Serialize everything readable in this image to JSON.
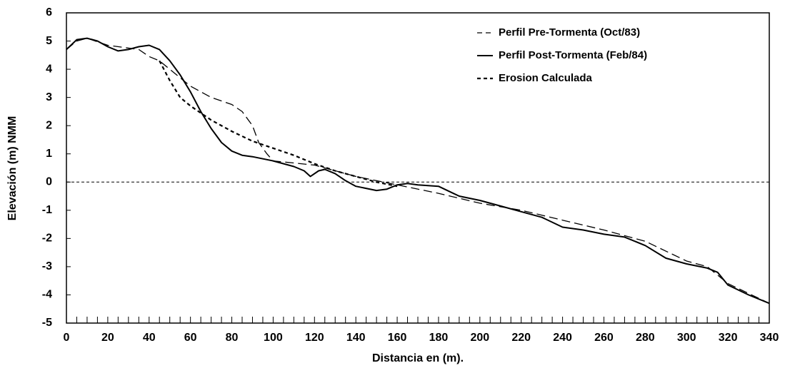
{
  "chart_data": {
    "type": "line",
    "x_label": "Distancia en (m).",
    "y_label": "Elevación  (m) NMM",
    "xlim": [
      0,
      340
    ],
    "xticks": [
      0,
      20,
      40,
      60,
      80,
      100,
      120,
      140,
      160,
      180,
      200,
      220,
      240,
      260,
      280,
      300,
      320,
      340
    ],
    "ylim": [
      -5,
      6
    ],
    "yticks": [
      -5,
      -4,
      -3,
      -2,
      -1,
      0,
      1,
      2,
      3,
      4,
      5,
      6
    ],
    "legend": "upper right",
    "series": [
      {
        "name": "Perfil Pre-Tormenta (Oct/83)",
        "color": "#000000",
        "style": "dashed",
        "x": [
          0,
          5,
          10,
          20,
          30,
          35,
          40,
          45,
          50,
          55,
          60,
          65,
          70,
          80,
          85,
          90,
          93,
          97,
          100,
          120,
          140,
          160,
          180,
          200,
          220,
          240,
          260,
          280,
          300,
          310,
          320,
          340
        ],
        "values": [
          4.7,
          5.0,
          5.1,
          4.85,
          4.75,
          4.7,
          4.45,
          4.3,
          4.0,
          3.7,
          3.4,
          3.2,
          3.0,
          2.75,
          2.5,
          2.0,
          1.4,
          1.0,
          0.75,
          0.6,
          0.2,
          -0.1,
          -0.4,
          -0.75,
          -1.0,
          -1.35,
          -1.7,
          -2.1,
          -2.8,
          -3.0,
          -3.6,
          -4.3
        ]
      },
      {
        "name": "Perfil Post-Tormenta (Feb/84)",
        "color": "#000000",
        "style": "solid",
        "x": [
          0,
          5,
          10,
          15,
          20,
          25,
          30,
          35,
          40,
          45,
          50,
          55,
          60,
          65,
          70,
          75,
          80,
          85,
          90,
          100,
          110,
          115,
          118,
          122,
          125,
          130,
          135,
          140,
          150,
          155,
          160,
          165,
          170,
          180,
          190,
          200,
          210,
          220,
          230,
          240,
          250,
          260,
          270,
          280,
          290,
          300,
          310,
          315,
          320,
          330,
          340
        ],
        "values": [
          4.7,
          5.05,
          5.1,
          5.0,
          4.8,
          4.65,
          4.7,
          4.8,
          4.85,
          4.7,
          4.3,
          3.8,
          3.2,
          2.5,
          1.9,
          1.4,
          1.1,
          0.95,
          0.9,
          0.75,
          0.55,
          0.4,
          0.2,
          0.4,
          0.45,
          0.3,
          0.05,
          -0.15,
          -0.3,
          -0.25,
          -0.1,
          -0.05,
          -0.1,
          -0.15,
          -0.5,
          -0.65,
          -0.85,
          -1.05,
          -1.25,
          -1.6,
          -1.7,
          -1.85,
          -1.95,
          -2.25,
          -2.7,
          -2.9,
          -3.05,
          -3.2,
          -3.65,
          -4.0,
          -4.3
        ]
      },
      {
        "name": "Erosion Calculada",
        "color": "#000000",
        "style": "dotted",
        "x": [
          45,
          50,
          55,
          60,
          70,
          80,
          90,
          100,
          110,
          120,
          130,
          140,
          150,
          160
        ],
        "values": [
          4.3,
          3.6,
          3.0,
          2.7,
          2.2,
          1.8,
          1.45,
          1.2,
          0.95,
          0.65,
          0.4,
          0.2,
          0.0,
          -0.15
        ]
      }
    ]
  }
}
